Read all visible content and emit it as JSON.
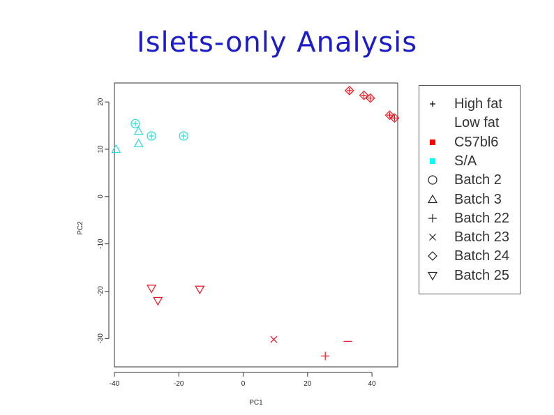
{
  "slide": {
    "title": "Islets-only Analysis"
  },
  "colors": {
    "high_fat": "#e8141e",
    "low_fat": "#28dcdc",
    "c57bl6": "#ff0000",
    "sa": "#00ffff",
    "title": "#1c1cc8"
  },
  "chart_data": {
    "type": "scatter",
    "title": "Islets-only Analysis",
    "xlabel": "PC1",
    "ylabel": "PC2",
    "xlim": [
      -40,
      48
    ],
    "ylim": [
      -36,
      24
    ],
    "x_ticks": [
      -40,
      -20,
      0,
      20,
      40
    ],
    "y_ticks": [
      -30,
      -20,
      -10,
      0,
      10,
      20
    ],
    "grid": false,
    "legend_placement": "right",
    "legend": [
      {
        "label": "High fat",
        "symbol": "plus-small",
        "color": "#000000"
      },
      {
        "label": "Low fat",
        "symbol": "none",
        "color": "#000000"
      },
      {
        "label": "C57bl6",
        "symbol": "filled-square",
        "color": "#ff0000"
      },
      {
        "label": "S/A",
        "symbol": "filled-square",
        "color": "#00ffff"
      },
      {
        "label": "Batch 2",
        "symbol": "circle",
        "color": "#000000"
      },
      {
        "label": "Batch 3",
        "symbol": "triangle",
        "color": "#000000"
      },
      {
        "label": "Batch 22",
        "symbol": "plus",
        "color": "#000000"
      },
      {
        "label": "Batch 23",
        "symbol": "cross",
        "color": "#000000"
      },
      {
        "label": "Batch 24",
        "symbol": "diamond",
        "color": "#000000"
      },
      {
        "label": "Batch 25",
        "symbol": "triangle-down",
        "color": "#000000"
      }
    ],
    "points": [
      {
        "x": -33.5,
        "y": 15.4,
        "group": "S/A",
        "batch": "Batch 2",
        "diet": "High fat"
      },
      {
        "x": -28.5,
        "y": 12.8,
        "group": "S/A",
        "batch": "Batch 2",
        "diet": "High fat"
      },
      {
        "x": -18.5,
        "y": 12.8,
        "group": "S/A",
        "batch": "Batch 2",
        "diet": "High fat"
      },
      {
        "x": -32.5,
        "y": 13.8,
        "group": "S/A",
        "batch": "Batch 3",
        "diet": "Low fat"
      },
      {
        "x": -32.5,
        "y": 11.2,
        "group": "S/A",
        "batch": "Batch 3",
        "diet": "Low fat"
      },
      {
        "x": -39.5,
        "y": 10.0,
        "group": "S/A",
        "batch": "Batch 3",
        "diet": "Low fat"
      },
      {
        "x": 33.0,
        "y": 22.4,
        "group": "C57bl6",
        "batch": "Batch 24",
        "diet": "High fat"
      },
      {
        "x": 47.0,
        "y": 16.6,
        "group": "C57bl6",
        "batch": "Batch 24",
        "diet": "High fat"
      },
      {
        "x": 37.5,
        "y": 21.4,
        "group": "C57bl6",
        "batch": "Batch 24",
        "diet": "High fat"
      },
      {
        "x": 39.5,
        "y": 20.8,
        "group": "C57bl6",
        "batch": "Batch 24",
        "diet": "High fat"
      },
      {
        "x": 45.5,
        "y": 17.2,
        "group": "C57bl6",
        "batch": "Batch 24",
        "diet": "High fat"
      },
      {
        "x": -28.5,
        "y": -19.4,
        "group": "C57bl6",
        "batch": "Batch 25",
        "diet": "Low fat"
      },
      {
        "x": -13.5,
        "y": -19.6,
        "group": "C57bl6",
        "batch": "Batch 25",
        "diet": "Low fat"
      },
      {
        "x": -26.5,
        "y": -22.0,
        "group": "C57bl6",
        "batch": "Batch 25",
        "diet": "Low fat"
      },
      {
        "x": 9.5,
        "y": -30.2,
        "group": "C57bl6",
        "batch": "Batch 23",
        "diet": "Low fat"
      },
      {
        "x": 32.5,
        "y": -30.6,
        "group": "C57bl6",
        "batch": "Batch 22",
        "diet": "Low fat"
      },
      {
        "x": 25.5,
        "y": -33.7,
        "group": "C57bl6",
        "batch": "Batch 22",
        "diet": "Low fat"
      }
    ]
  }
}
